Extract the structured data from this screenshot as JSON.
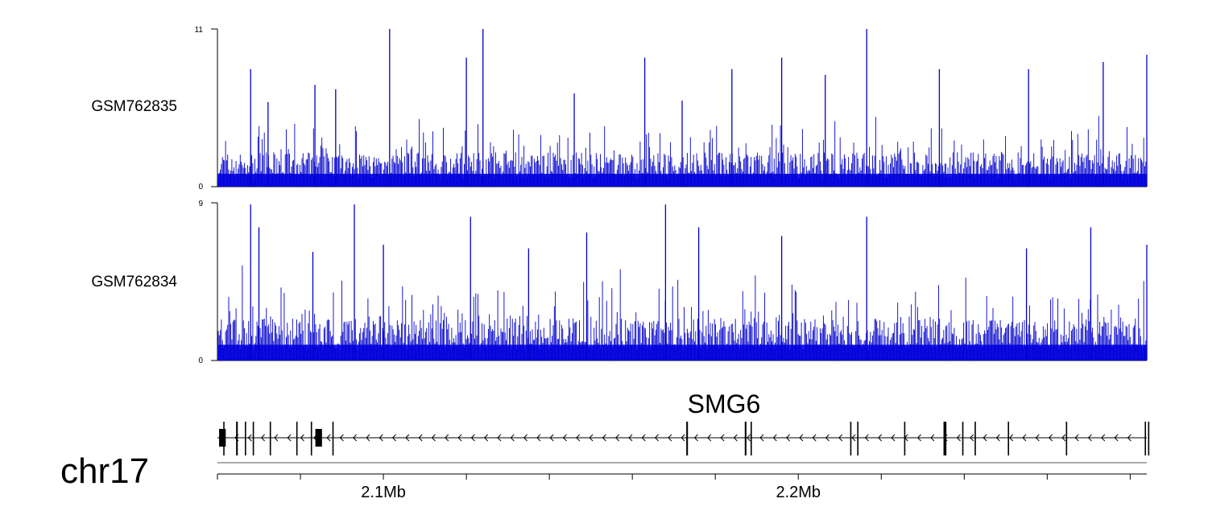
{
  "chart_data": {
    "type": "bar",
    "chromosome": "chr17",
    "x_ticks": [
      {
        "value": 2.1,
        "label": "2.1Mb"
      },
      {
        "value": 2.2,
        "label": "2.2Mb"
      }
    ],
    "xlim": [
      2.06,
      2.284
    ],
    "tracks": [
      {
        "name": "GSM762835",
        "ylim": [
          0,
          11
        ],
        "y_tick_labels": [
          "0",
          "11"
        ],
        "color": "#0000cc",
        "peaks": [
          {
            "x": 2.068,
            "y": 8.2
          },
          {
            "x": 2.0722,
            "y": 5.9
          },
          {
            "x": 2.0835,
            "y": 7.1
          },
          {
            "x": 2.0885,
            "y": 6.8
          },
          {
            "x": 2.1015,
            "y": 11
          },
          {
            "x": 2.12,
            "y": 9.0
          },
          {
            "x": 2.124,
            "y": 11
          },
          {
            "x": 2.146,
            "y": 6.5
          },
          {
            "x": 2.163,
            "y": 9.0
          },
          {
            "x": 2.172,
            "y": 6.0
          },
          {
            "x": 2.184,
            "y": 8.2
          },
          {
            "x": 2.196,
            "y": 9.0
          },
          {
            "x": 2.2065,
            "y": 7.8
          },
          {
            "x": 2.2165,
            "y": 11
          },
          {
            "x": 2.234,
            "y": 8.2
          },
          {
            "x": 2.2555,
            "y": 8.2
          },
          {
            "x": 2.2735,
            "y": 8.7
          },
          {
            "x": 2.284,
            "y": 9.2
          }
        ]
      },
      {
        "name": "GSM762834",
        "ylim": [
          0,
          9
        ],
        "y_tick_labels": [
          "0",
          "9"
        ],
        "color": "#0000cc",
        "peaks": [
          {
            "x": 2.068,
            "y": 8.9
          },
          {
            "x": 2.07,
            "y": 7.6
          },
          {
            "x": 2.083,
            "y": 6.2
          },
          {
            "x": 2.093,
            "y": 8.9
          },
          {
            "x": 2.1,
            "y": 6.6
          },
          {
            "x": 2.121,
            "y": 8.2
          },
          {
            "x": 2.135,
            "y": 6.4
          },
          {
            "x": 2.149,
            "y": 7.3
          },
          {
            "x": 2.168,
            "y": 8.9
          },
          {
            "x": 2.176,
            "y": 7.6
          },
          {
            "x": 2.196,
            "y": 7.1
          },
          {
            "x": 2.2165,
            "y": 8.2
          },
          {
            "x": 2.255,
            "y": 6.4
          },
          {
            "x": 2.2705,
            "y": 7.6
          },
          {
            "x": 2.284,
            "y": 6.6
          }
        ]
      }
    ],
    "gene": {
      "name": "SMG6",
      "strand": "-",
      "exons": [
        {
          "x": 2.0604,
          "w": 0.0016
        },
        {
          "x": 2.0614,
          "w": 0.0003
        },
        {
          "x": 2.0645,
          "w": 0.0004
        },
        {
          "x": 2.0666,
          "w": 0.0003
        },
        {
          "x": 2.0685,
          "w": 0.0003
        },
        {
          "x": 2.0726,
          "w": 0.0003
        },
        {
          "x": 2.079,
          "w": 0.0003
        },
        {
          "x": 2.0825,
          "w": 0.0003
        },
        {
          "x": 2.0836,
          "w": 0.0016
        },
        {
          "x": 2.0877,
          "w": 0.0003
        },
        {
          "x": 2.173,
          "w": 0.0004
        },
        {
          "x": 2.1871,
          "w": 0.0004
        },
        {
          "x": 2.1885,
          "w": 0.0003
        },
        {
          "x": 2.2125,
          "w": 0.0003
        },
        {
          "x": 2.2142,
          "w": 0.0003
        },
        {
          "x": 2.2255,
          "w": 0.0003
        },
        {
          "x": 2.235,
          "w": 0.0007
        },
        {
          "x": 2.2395,
          "w": 0.0003
        },
        {
          "x": 2.2425,
          "w": 0.0003
        },
        {
          "x": 2.2505,
          "w": 0.0003
        },
        {
          "x": 2.2645,
          "w": 0.0003
        },
        {
          "x": 2.2835,
          "w": 0.0003
        },
        {
          "x": 2.2843,
          "w": 0.0003
        }
      ]
    }
  }
}
